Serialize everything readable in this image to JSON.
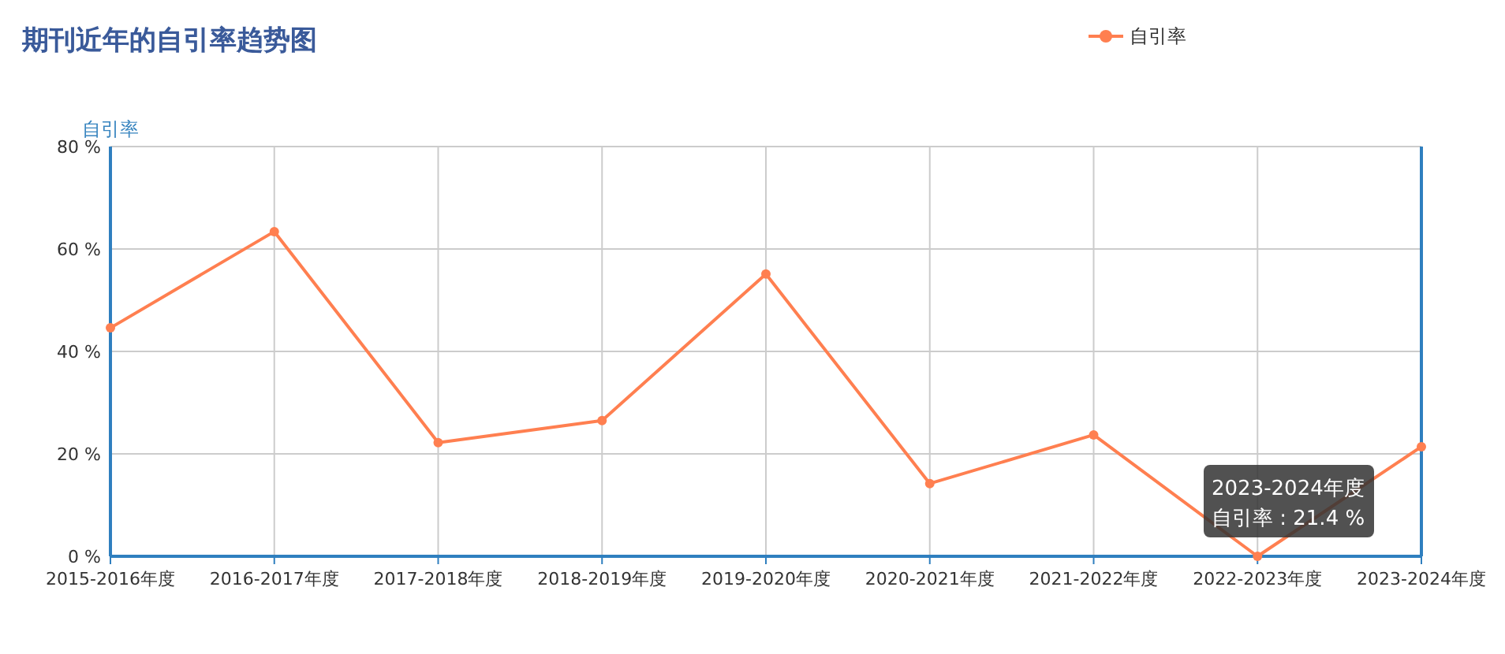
{
  "chart_data": {
    "type": "line",
    "title": "期刊近年的自引率趋势图",
    "ylabel": "自引率",
    "categories": [
      "2015-2016年度",
      "2016-2017年度",
      "2017-2018年度",
      "2018-2019年度",
      "2019-2020年度",
      "2020-2021年度",
      "2021-2022年度",
      "2022-2023年度",
      "2023-2024年度"
    ],
    "series": [
      {
        "name": "自引率",
        "color": "#ff7f50",
        "values": [
          44.6,
          63.4,
          22.2,
          26.5,
          55.1,
          14.2,
          23.7,
          0,
          21.4
        ]
      }
    ],
    "ylim": [
      0,
      80
    ],
    "yticks": [
      {
        "value": 0,
        "label": "0 %"
      },
      {
        "value": 20,
        "label": "20 %"
      },
      {
        "value": 40,
        "label": "40 %"
      },
      {
        "value": 60,
        "label": "60 %"
      },
      {
        "value": 80,
        "label": "80 %"
      }
    ],
    "grid": true,
    "legend": "top right",
    "marker": "circle",
    "line_style": "solid",
    "annotations": [
      "2023-2024年度",
      "自引率 : 21.4 %"
    ]
  }
}
